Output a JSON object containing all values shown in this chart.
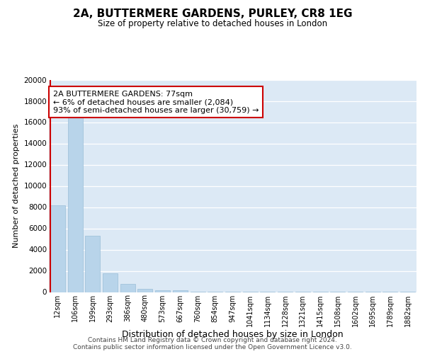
{
  "title": "2A, BUTTERMERE GARDENS, PURLEY, CR8 1EG",
  "subtitle": "Size of property relative to detached houses in London",
  "xlabel": "Distribution of detached houses by size in London",
  "ylabel": "Number of detached properties",
  "bar_color": "#b8d4ea",
  "bar_edge_color": "#9bbdd8",
  "background_color": "#dce9f5",
  "grid_color": "#ffffff",
  "annotation_line1": "2A BUTTERMERE GARDENS: 77sqm",
  "annotation_line2": "← 6% of detached houses are smaller (2,084)",
  "annotation_line3": "93% of semi-detached houses are larger (30,759) →",
  "annotation_color": "#cc0000",
  "red_line_x": 0,
  "categories": [
    "12sqm",
    "106sqm",
    "199sqm",
    "293sqm",
    "386sqm",
    "480sqm",
    "573sqm",
    "667sqm",
    "760sqm",
    "854sqm",
    "947sqm",
    "1041sqm",
    "1134sqm",
    "1228sqm",
    "1321sqm",
    "1415sqm",
    "1508sqm",
    "1602sqm",
    "1695sqm",
    "1789sqm",
    "1882sqm"
  ],
  "values": [
    8200,
    16500,
    5300,
    1800,
    800,
    300,
    200,
    200,
    30,
    25,
    20,
    15,
    12,
    10,
    8,
    6,
    5,
    4,
    3,
    3,
    2
  ],
  "ylim": [
    0,
    20000
  ],
  "yticks": [
    0,
    2000,
    4000,
    6000,
    8000,
    10000,
    12000,
    14000,
    16000,
    18000,
    20000
  ],
  "footer_line1": "Contains HM Land Registry data © Crown copyright and database right 2024.",
  "footer_line2": "Contains public sector information licensed under the Open Government Licence v3.0."
}
